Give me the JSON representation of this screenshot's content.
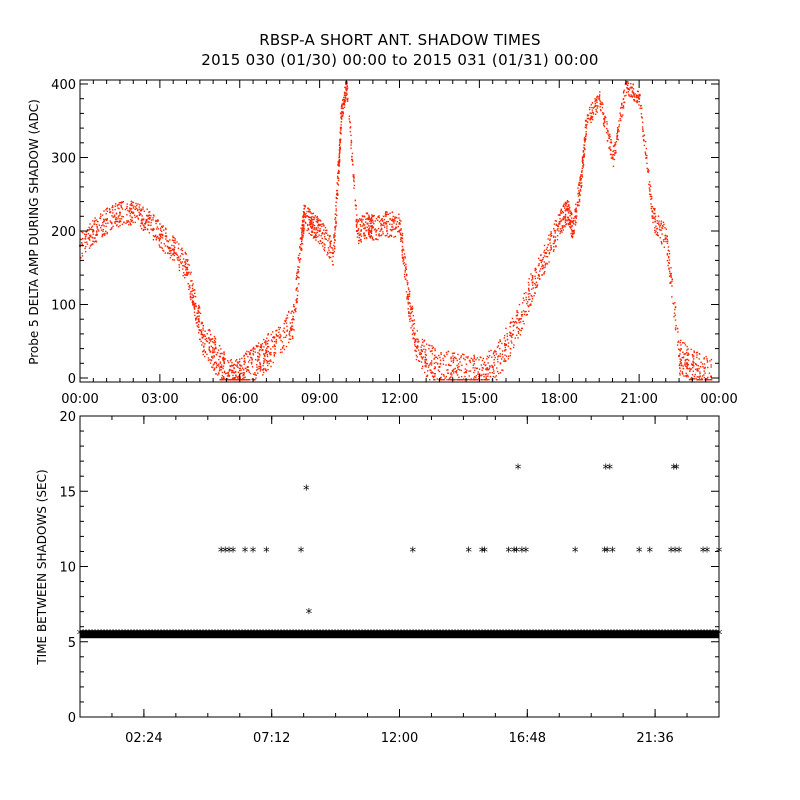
{
  "title": {
    "line1": "RBSP-A SHORT ANT. SHADOW TIMES",
    "line2": "2015 030 (01/30) 00:00 to 2015 031 (01/31) 00:00"
  },
  "chart_data": [
    {
      "type": "scatter",
      "ylabel": "Probe 5 DELTA AMP DURING SHADOW (ADC)",
      "xlim_hours": [
        0,
        24
      ],
      "ylim": [
        0,
        400
      ],
      "x_ticks": [
        "00:00",
        "03:00",
        "06:00",
        "09:00",
        "12:00",
        "15:00",
        "18:00",
        "21:00",
        "00:00"
      ],
      "y_ticks": [
        "0",
        "100",
        "200",
        "300",
        "400"
      ],
      "marker_color": "#ff2200",
      "series": [
        {
          "x_hours": [
            0.0,
            0.5,
            1.0,
            1.5,
            2.0,
            2.5,
            3.0,
            3.5,
            4.0,
            4.3,
            4.6,
            5.0,
            5.3,
            5.6,
            5.8,
            6.0,
            6.3,
            6.7,
            7.0,
            7.5,
            8.0,
            8.3,
            8.4,
            8.7,
            9.0,
            9.5,
            9.7,
            9.8,
            10.0,
            10.4,
            10.8,
            11.0,
            11.5,
            12.0,
            12.3,
            12.6,
            13.0,
            13.5,
            14.0,
            14.5,
            15.0,
            15.5,
            16.0,
            16.5,
            17.0,
            17.5,
            18.0,
            18.3,
            18.5,
            18.8,
            19.0,
            19.5,
            20.0,
            20.5,
            21.0,
            21.5,
            22.0,
            22.5,
            22.8,
            23.2,
            23.7
          ],
          "y_values": [
            180,
            200,
            215,
            225,
            225,
            215,
            195,
            175,
            150,
            100,
            55,
            35,
            15,
            3,
            0,
            1,
            15,
            25,
            35,
            55,
            80,
            190,
            220,
            210,
            200,
            170,
            290,
            360,
            400,
            200,
            210,
            205,
            210,
            210,
            110,
            50,
            25,
            15,
            10,
            8,
            5,
            15,
            45,
            80,
            130,
            170,
            210,
            230,
            200,
            270,
            350,
            380,
            300,
            400,
            380,
            220,
            190,
            30,
            20,
            10,
            2
          ]
        }
      ]
    },
    {
      "type": "scatter",
      "ylabel": "TIME BETWEEN SHADOWS (SEC)",
      "xlim_hours": [
        0,
        24
      ],
      "ylim": [
        0,
        20
      ],
      "x_ticks": [
        "02:24",
        "07:12",
        "12:00",
        "16:48",
        "21:36"
      ],
      "y_ticks": [
        "0",
        "5",
        "10",
        "15",
        "20"
      ],
      "marker": "*",
      "series": [
        {
          "baseline_value": 5.5,
          "x_hours": [
            5.3,
            5.45,
            5.6,
            5.75,
            6.2,
            6.5,
            7.0,
            8.3,
            8.5,
            8.6,
            12.5,
            14.6,
            15.1,
            15.2,
            16.1,
            16.3,
            16.4,
            16.45,
            16.6,
            16.75,
            18.6,
            19.7,
            19.75,
            19.8,
            19.9,
            20.0,
            21.0,
            21.4,
            22.2,
            22.3,
            22.35,
            22.4,
            22.5,
            23.4,
            23.55,
            24.0
          ],
          "y_values": [
            11.0,
            11.0,
            11.0,
            11.0,
            11.0,
            11.0,
            11.0,
            11.0,
            15.1,
            6.9,
            11.0,
            11.0,
            11.0,
            11.0,
            11.0,
            11.0,
            11.0,
            16.5,
            11.0,
            11.0,
            11.0,
            11.0,
            16.5,
            11.0,
            16.5,
            11.0,
            11.0,
            11.0,
            11.0,
            16.5,
            11.0,
            16.5,
            11.0,
            11.0,
            11.0,
            11.0
          ]
        }
      ]
    }
  ]
}
